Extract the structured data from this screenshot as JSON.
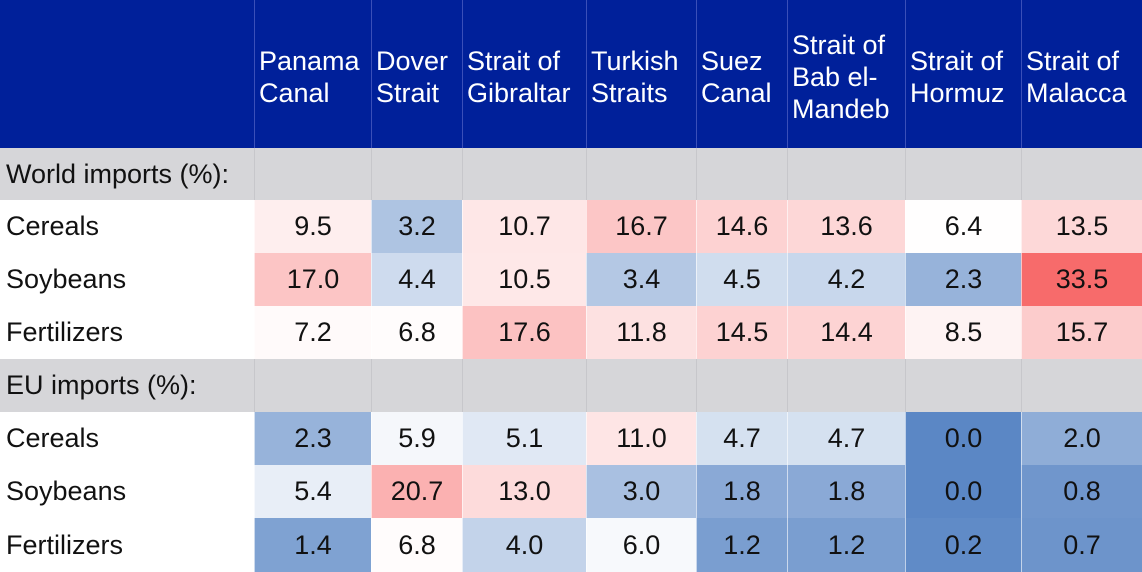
{
  "chart_data": {
    "type": "heatmap",
    "columns": [
      "Panama\nCanal",
      "Dover\nStrait",
      "Strait of\nGibraltar",
      "Turkish\nStraits",
      "Suez\nCanal",
      "Strait of\nBab el-\nMandeb",
      "Strait of\nHormuz",
      "Strait of\nMalacca"
    ],
    "sections": [
      {
        "label": "World imports (%):",
        "rows": [
          {
            "label": "Cereals",
            "values": [
              9.5,
              3.2,
              10.7,
              16.7,
              14.6,
              13.6,
              6.4,
              13.5
            ]
          },
          {
            "label": "Soybeans",
            "values": [
              17.0,
              4.4,
              10.5,
              3.4,
              4.5,
              4.2,
              2.3,
              33.5
            ]
          },
          {
            "label": "Fertilizers",
            "values": [
              7.2,
              6.8,
              17.6,
              11.8,
              14.5,
              14.4,
              8.5,
              15.7
            ]
          }
        ]
      },
      {
        "label": "EU imports (%):",
        "rows": [
          {
            "label": "Cereals",
            "values": [
              2.3,
              5.9,
              5.1,
              11.0,
              4.7,
              4.7,
              0.0,
              2.0
            ]
          },
          {
            "label": "Soybeans",
            "values": [
              5.4,
              20.7,
              13.0,
              3.0,
              1.8,
              1.8,
              0.0,
              0.8
            ]
          },
          {
            "label": "Fertilizers",
            "values": [
              1.4,
              6.8,
              4.0,
              6.0,
              1.2,
              1.2,
              0.2,
              0.7
            ]
          }
        ]
      }
    ],
    "colors": {
      "header_bg": "#00209a",
      "section_bg": "#d6d6d9",
      "low": "#5b87c5",
      "mid": "#ffffff",
      "high": "#f76b6b"
    },
    "color_scale": {
      "low_value": 0.0,
      "mid_value": 6.3,
      "high_value": 33.5
    }
  }
}
